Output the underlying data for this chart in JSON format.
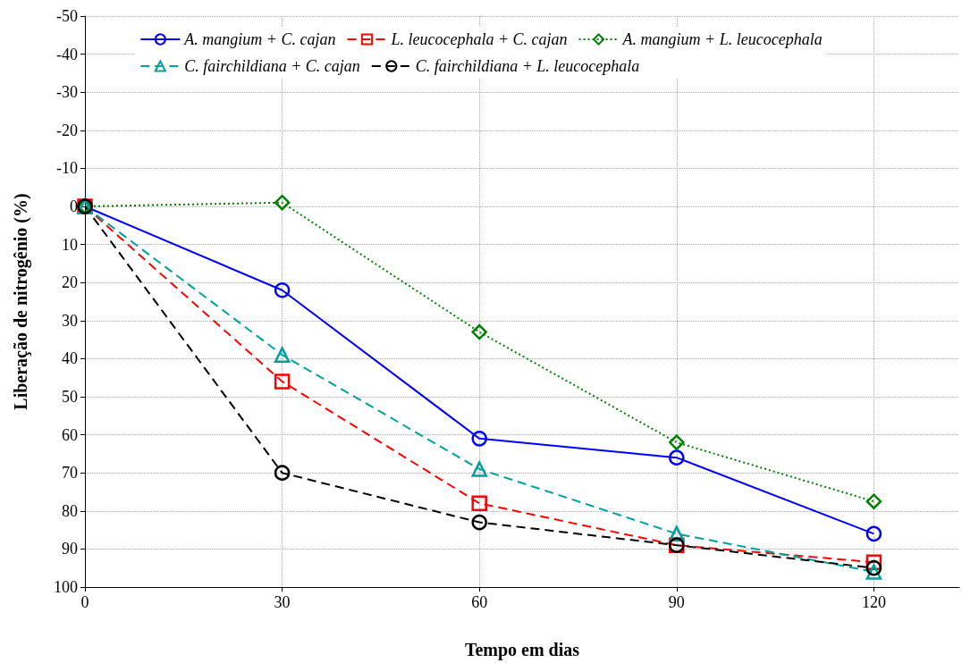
{
  "chart_data": {
    "type": "line",
    "xlabel": "Tempo em dias",
    "ylabel": "Liberação de nitrogênio (%)",
    "x": [
      0,
      30,
      60,
      90,
      120
    ],
    "xlim": [
      0,
      133
    ],
    "xticks": [
      0,
      30,
      60,
      90,
      120
    ],
    "ylim": [
      100,
      -50
    ],
    "yticks": [
      -50,
      -40,
      -30,
      -20,
      -10,
      0,
      10,
      20,
      30,
      40,
      50,
      60,
      70,
      80,
      90,
      100
    ],
    "grid": true,
    "legend": "top",
    "series": [
      {
        "name": "A. mangium + C. cajan",
        "color": "#0000ff",
        "marker": "circle",
        "line_style": "solid",
        "values": [
          0,
          22,
          61,
          66,
          86
        ]
      },
      {
        "name": "L. leucocephala + C. cajan",
        "color": "#ff0000",
        "marker": "square",
        "line_style": "dashed",
        "values": [
          0,
          46,
          78,
          89,
          93.5
        ]
      },
      {
        "name": "A. mangium + L. leucocephala",
        "color": "#008000",
        "marker": "diamond",
        "line_style": "dotted",
        "values": [
          0,
          -1,
          33,
          62,
          77.5
        ]
      },
      {
        "name": "C. fairchildiana + C. cajan",
        "color": "#00a0a0",
        "marker": "triangle",
        "line_style": "dashed",
        "values": [
          0,
          39,
          69,
          86,
          96
        ]
      },
      {
        "name": "C. fairchildiana + L. leucocephala",
        "color": "#000000",
        "marker": "circle",
        "line_style": "dashed",
        "values": [
          0,
          70,
          83,
          89,
          95
        ]
      }
    ]
  }
}
